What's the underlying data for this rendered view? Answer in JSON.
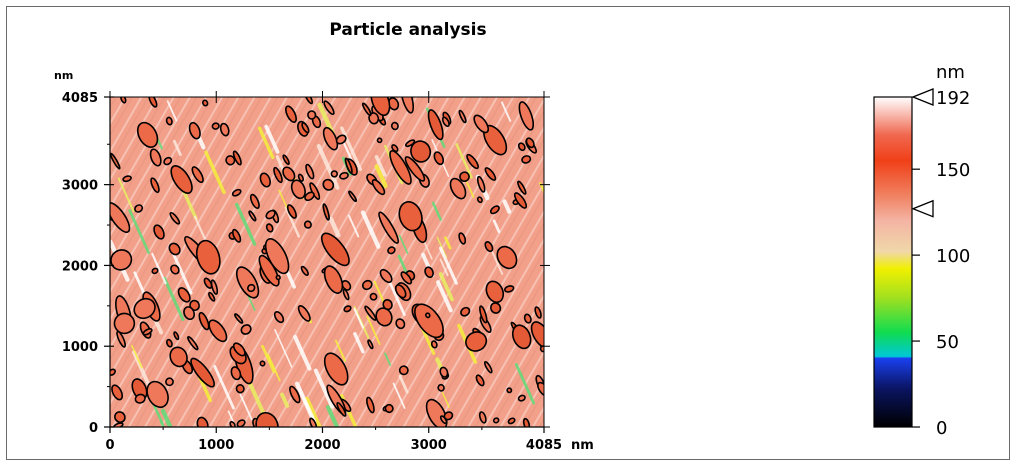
{
  "chart_data": {
    "type": "heatmap",
    "title": "Particle analysis",
    "x_unit": "nm",
    "y_unit": "nm",
    "xlim": [
      0,
      4085
    ],
    "ylim": [
      0,
      4085
    ],
    "x_ticks": [
      {
        "value": 0,
        "label": "0"
      },
      {
        "value": 1000,
        "label": "1000"
      },
      {
        "value": 2000,
        "label": "2000"
      },
      {
        "value": 3000,
        "label": "3000"
      },
      {
        "value": 4085,
        "label": "4085"
      }
    ],
    "y_ticks": [
      {
        "value": 0,
        "label": "0"
      },
      {
        "value": 1000,
        "label": "1000"
      },
      {
        "value": 2000,
        "label": "2000"
      },
      {
        "value": 3000,
        "label": "3000"
      },
      {
        "value": 4085,
        "label": "4085"
      }
    ],
    "colorbar": {
      "unit": "nm",
      "range": [
        0,
        192
      ],
      "ticks": [
        {
          "value": 0,
          "label": "0"
        },
        {
          "value": 50,
          "label": "50"
        },
        {
          "value": 100,
          "label": "100"
        },
        {
          "value": 150,
          "label": "150"
        },
        {
          "value": 192,
          "label": "192"
        }
      ],
      "markers": [
        192,
        127
      ],
      "stops": [
        {
          "value": 0,
          "color": "#000000"
        },
        {
          "value": 22,
          "color": "#0a1460"
        },
        {
          "value": 40,
          "color": "#1a40f0"
        },
        {
          "value": 41,
          "color": "#00c8d8"
        },
        {
          "value": 55,
          "color": "#10dc50"
        },
        {
          "value": 75,
          "color": "#a0e020"
        },
        {
          "value": 92,
          "color": "#f0f000"
        },
        {
          "value": 102,
          "color": "#f0d8a8"
        },
        {
          "value": 120,
          "color": "#f4b4a4"
        },
        {
          "value": 135,
          "color": "#f08060"
        },
        {
          "value": 155,
          "color": "#f04018"
        },
        {
          "value": 170,
          "color": "#f06850"
        },
        {
          "value": 192,
          "color": "#ffffff"
        }
      ]
    },
    "particle_outline_color": "#000000",
    "surface_base_color": "#f2a08a"
  }
}
